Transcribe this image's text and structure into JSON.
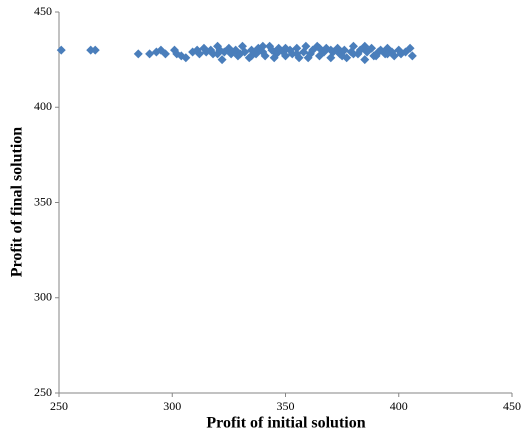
{
  "chart_data": {
    "type": "scatter",
    "x_label": "Profit of initial solution",
    "y_label": "Profit of final solution",
    "color": "#4a7ebb",
    "xlim": [
      250,
      450
    ],
    "xticks": [
      250,
      300,
      350,
      400,
      450
    ],
    "ylim": [
      250,
      450
    ],
    "yticks": [
      250,
      300,
      350,
      400,
      450
    ],
    "grid": false,
    "x": [
      251,
      264,
      266,
      285,
      290,
      293,
      295,
      297,
      301,
      302,
      304,
      306,
      309,
      311,
      312,
      314,
      315,
      317,
      318,
      320,
      321,
      322,
      323,
      325,
      326,
      328,
      329,
      331,
      332,
      334,
      335,
      337,
      338,
      340,
      341,
      343,
      344,
      346,
      347,
      349,
      350,
      352,
      353,
      355,
      356,
      358,
      359,
      361,
      362,
      364,
      365,
      367,
      368,
      370,
      371,
      373,
      374,
      376,
      377,
      379,
      380,
      382,
      383,
      385,
      386,
      388,
      389,
      391,
      392,
      394,
      395,
      397,
      398,
      400,
      401,
      403,
      405,
      406,
      320,
      330,
      340,
      345,
      350,
      360,
      365,
      370,
      375,
      380,
      385,
      390,
      395,
      335,
      355
    ],
    "values": [
      430,
      430,
      430,
      428,
      428,
      429,
      430,
      428,
      430,
      428,
      427,
      426,
      429,
      430,
      428,
      431,
      429,
      430,
      428,
      432,
      430,
      425,
      429,
      431,
      428,
      430,
      427,
      432,
      429,
      426,
      430,
      428,
      431,
      429,
      427,
      432,
      430,
      428,
      431,
      429,
      427,
      430,
      428,
      431,
      426,
      429,
      432,
      428,
      430,
      432,
      427,
      429,
      431,
      426,
      429,
      431,
      428,
      430,
      426,
      429,
      432,
      428,
      430,
      425,
      429,
      431,
      427,
      429,
      430,
      428,
      431,
      429,
      427,
      430,
      428,
      429,
      431,
      427,
      428,
      428,
      432,
      426,
      431,
      426,
      431,
      430,
      427,
      428,
      432,
      427,
      428,
      427,
      428
    ]
  }
}
